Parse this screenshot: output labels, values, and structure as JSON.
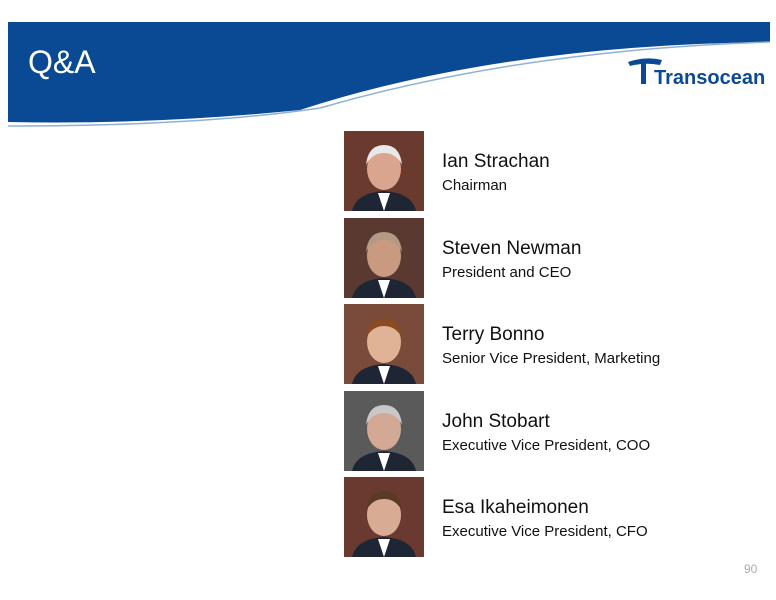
{
  "header": {
    "title": "Q&A",
    "logo": "Transocean"
  },
  "people": [
    {
      "name": "Ian Strachan",
      "role": "Chairman"
    },
    {
      "name": "Steven Newman",
      "role": "President and CEO"
    },
    {
      "name": "Terry Bonno",
      "role": "Senior Vice President, Marketing"
    },
    {
      "name": "John Stobart",
      "role": "Executive Vice President, COO"
    },
    {
      "name": "Esa Ikaheimonen",
      "role": "Executive Vice President, CFO"
    }
  ],
  "page_number": "90"
}
